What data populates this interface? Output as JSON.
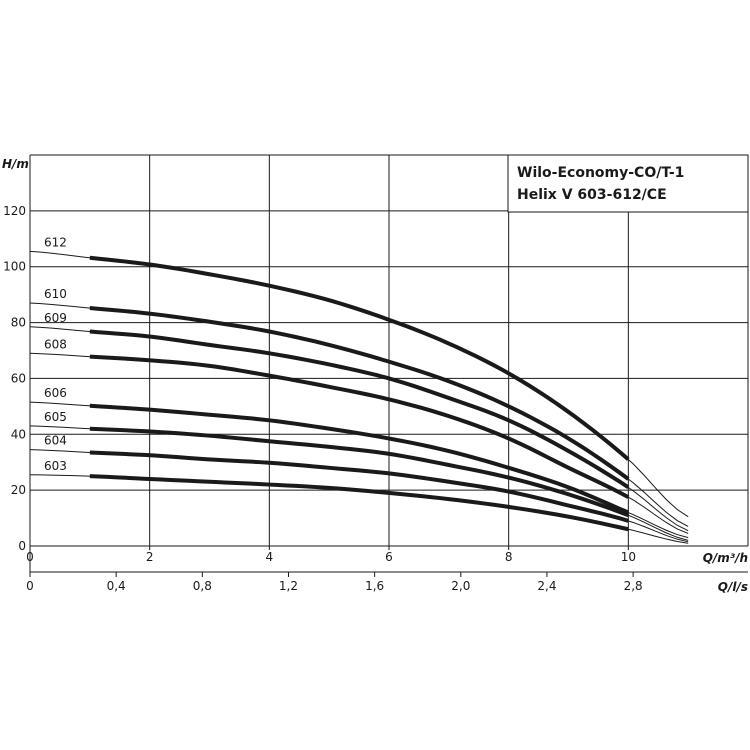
{
  "chart_data": {
    "type": "line",
    "title_lines": [
      "Wilo-Economy-CO/T-1",
      "Helix V 603-612/CE"
    ],
    "ylabel": "H/m",
    "xlabel": "Q/m³/h",
    "x2label": "Q/l/s",
    "xlim": [
      0,
      12
    ],
    "ylim": [
      0,
      140
    ],
    "x_ticks": [
      "0",
      "2",
      "4",
      "6",
      "8",
      "10"
    ],
    "y_ticks": [
      "0",
      "20",
      "40",
      "60",
      "80",
      "100",
      "120"
    ],
    "x2_ticks": [
      "0",
      "0,4",
      "0,8",
      "1,2",
      "1,6",
      "2,0",
      "2,4",
      "2,8"
    ],
    "x2_tick_values": [
      0,
      0.4,
      0.8,
      1.2,
      1.6,
      2.0,
      2.4,
      2.8
    ],
    "grid": true,
    "operating_range": [
      1,
      10
    ],
    "series": [
      {
        "name": "612",
        "points": [
          [
            0,
            105.5
          ],
          [
            1,
            103.2
          ],
          [
            2,
            100.8
          ],
          [
            3,
            97.3
          ],
          [
            4,
            93.2
          ],
          [
            5,
            88.0
          ],
          [
            6,
            81.0
          ],
          [
            7,
            72.5
          ],
          [
            8,
            61.8
          ],
          [
            9,
            48.0
          ],
          [
            10,
            31.0
          ],
          [
            11,
            10.5
          ]
        ]
      },
      {
        "name": "610",
        "points": [
          [
            0,
            87.0
          ],
          [
            1,
            85.2
          ],
          [
            2,
            83.2
          ],
          [
            3,
            80.3
          ],
          [
            4,
            76.8
          ],
          [
            5,
            72.0
          ],
          [
            6,
            66.0
          ],
          [
            7,
            59.0
          ],
          [
            8,
            50.0
          ],
          [
            9,
            38.5
          ],
          [
            10,
            24.0
          ],
          [
            11,
            7.0
          ]
        ]
      },
      {
        "name": "609",
        "points": [
          [
            0,
            78.5
          ],
          [
            1,
            76.8
          ],
          [
            2,
            75.0
          ],
          [
            3,
            72.0
          ],
          [
            4,
            69.0
          ],
          [
            5,
            65.0
          ],
          [
            6,
            60.0
          ],
          [
            7,
            53.0
          ],
          [
            8,
            45.0
          ],
          [
            9,
            34.0
          ],
          [
            10,
            21.0
          ],
          [
            11,
            5.5
          ]
        ]
      },
      {
        "name": "608",
        "points": [
          [
            0,
            69.0
          ],
          [
            1,
            67.8
          ],
          [
            2,
            66.5
          ],
          [
            3,
            64.5
          ],
          [
            4,
            61.0
          ],
          [
            5,
            57.0
          ],
          [
            6,
            52.5
          ],
          [
            7,
            46.5
          ],
          [
            8,
            38.5
          ],
          [
            9,
            28.0
          ],
          [
            10,
            17.5
          ],
          [
            11,
            4.5
          ]
        ]
      },
      {
        "name": "606",
        "points": [
          [
            0,
            51.5
          ],
          [
            1,
            50.2
          ],
          [
            2,
            48.8
          ],
          [
            3,
            47.0
          ],
          [
            4,
            45.0
          ],
          [
            5,
            42.0
          ],
          [
            6,
            38.5
          ],
          [
            7,
            34.0
          ],
          [
            8,
            28.0
          ],
          [
            9,
            21.0
          ],
          [
            10,
            12.0
          ],
          [
            11,
            3.0
          ]
        ]
      },
      {
        "name": "605",
        "points": [
          [
            0,
            43.0
          ],
          [
            1,
            42.0
          ],
          [
            2,
            41.0
          ],
          [
            3,
            39.5
          ],
          [
            4,
            37.5
          ],
          [
            5,
            35.5
          ],
          [
            6,
            33.0
          ],
          [
            7,
            29.0
          ],
          [
            8,
            24.5
          ],
          [
            9,
            18.5
          ],
          [
            10,
            11.0
          ],
          [
            11,
            2.0
          ]
        ]
      },
      {
        "name": "604",
        "points": [
          [
            0,
            34.5
          ],
          [
            1,
            33.5
          ],
          [
            2,
            32.5
          ],
          [
            3,
            31.0
          ],
          [
            4,
            29.8
          ],
          [
            5,
            28.0
          ],
          [
            6,
            26.0
          ],
          [
            7,
            23.0
          ],
          [
            8,
            19.5
          ],
          [
            9,
            14.5
          ],
          [
            10,
            9.0
          ],
          [
            11,
            1.5
          ]
        ]
      },
      {
        "name": "603",
        "points": [
          [
            0,
            25.5
          ],
          [
            1,
            25.0
          ],
          [
            2,
            24.0
          ],
          [
            3,
            23.0
          ],
          [
            4,
            22.0
          ],
          [
            5,
            20.8
          ],
          [
            6,
            19.0
          ],
          [
            7,
            16.8
          ],
          [
            8,
            14.0
          ],
          [
            9,
            10.5
          ],
          [
            10,
            6.0
          ],
          [
            11,
            1.0
          ]
        ]
      }
    ]
  }
}
